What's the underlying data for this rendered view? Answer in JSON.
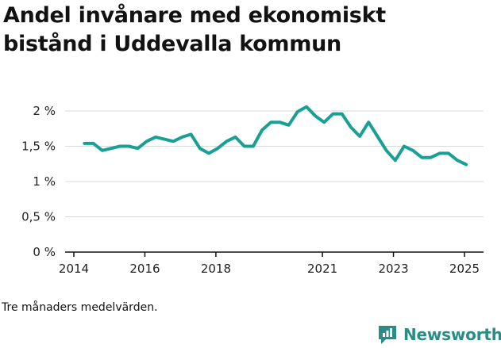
{
  "title_lines": [
    "Andel invånare med ekonomiskt",
    "bistånd i Uddevalla kommun"
  ],
  "footnote": "Tre månaders medelvärden.",
  "brand": {
    "name": "Newsworthy",
    "color": "#2a8c86",
    "icon": "newsworthy-logo-icon"
  },
  "colors": {
    "line": "#17a093",
    "grid": "#d9d9d9",
    "axis": "#111111"
  },
  "chart_data": {
    "type": "line",
    "title": "Andel invånare med ekonomiskt bistånd i Uddevalla kommun",
    "xlabel": "",
    "ylabel": "",
    "xlim": [
      2014.0,
      2025.4
    ],
    "ylim": [
      0,
      2.2
    ],
    "grid": true,
    "x_ticks": [
      {
        "value": 2014,
        "label": "2014"
      },
      {
        "value": 2016,
        "label": "2016"
      },
      {
        "value": 2018,
        "label": "2018"
      },
      {
        "value": 2021,
        "label": "2021"
      },
      {
        "value": 2023,
        "label": "2023"
      },
      {
        "value": 2025,
        "label": "2025"
      }
    ],
    "y_ticks": [
      {
        "value": 0,
        "label": "0 %"
      },
      {
        "value": 0.5,
        "label": "0,5 %"
      },
      {
        "value": 1,
        "label": "1 %"
      },
      {
        "value": 1.5,
        "label": "1,5 %"
      },
      {
        "value": 2,
        "label": "2 %"
      }
    ],
    "series": [
      {
        "name": "Andel invånare med ekonomiskt bistånd",
        "x": [
          2014.3,
          2014.55,
          2014.8,
          2015.05,
          2015.3,
          2015.55,
          2015.8,
          2016.05,
          2016.3,
          2016.55,
          2016.8,
          2017.05,
          2017.3,
          2017.55,
          2017.8,
          2018.05,
          2018.3,
          2018.55,
          2018.8,
          2019.05,
          2019.3,
          2019.55,
          2019.8,
          2020.05,
          2020.3,
          2020.55,
          2020.8,
          2021.05,
          2021.3,
          2021.55,
          2021.8,
          2022.05,
          2022.3,
          2022.55,
          2022.8,
          2023.05,
          2023.3,
          2023.55,
          2023.8,
          2024.05,
          2024.3,
          2024.55,
          2024.8,
          2025.05
        ],
        "y": [
          1.54,
          1.54,
          1.44,
          1.47,
          1.5,
          1.5,
          1.47,
          1.57,
          1.63,
          1.6,
          1.57,
          1.63,
          1.67,
          1.47,
          1.4,
          1.47,
          1.57,
          1.63,
          1.5,
          1.5,
          1.73,
          1.84,
          1.84,
          1.8,
          1.99,
          2.06,
          1.93,
          1.84,
          1.96,
          1.96,
          1.77,
          1.64,
          1.84,
          1.64,
          1.44,
          1.3,
          1.5,
          1.44,
          1.34,
          1.34,
          1.4,
          1.4,
          1.3,
          1.24
        ]
      }
    ]
  }
}
